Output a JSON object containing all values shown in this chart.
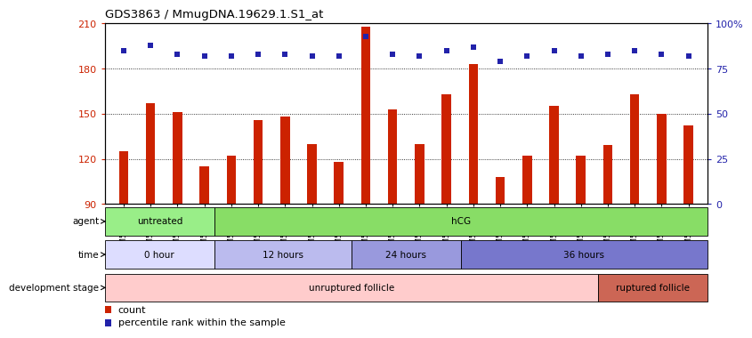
{
  "title": "GDS3863 / MmugDNA.19629.1.S1_at",
  "samples": [
    "GSM563219",
    "GSM563220",
    "GSM563221",
    "GSM563222",
    "GSM563223",
    "GSM563224",
    "GSM563225",
    "GSM563226",
    "GSM563227",
    "GSM563228",
    "GSM563229",
    "GSM563230",
    "GSM563231",
    "GSM563232",
    "GSM563233",
    "GSM563234",
    "GSM563235",
    "GSM563236",
    "GSM563237",
    "GSM563238",
    "GSM563239",
    "GSM563240"
  ],
  "counts": [
    125,
    157,
    151,
    115,
    122,
    146,
    148,
    130,
    118,
    208,
    153,
    130,
    163,
    183,
    108,
    122,
    155,
    122,
    129,
    163,
    150,
    142
  ],
  "percentiles": [
    85,
    88,
    83,
    82,
    82,
    83,
    83,
    82,
    82,
    93,
    83,
    82,
    85,
    87,
    79,
    82,
    85,
    82,
    83,
    85,
    83,
    82
  ],
  "ylim_left": [
    90,
    210
  ],
  "yticks_left": [
    90,
    120,
    150,
    180,
    210
  ],
  "ylim_right": [
    0,
    100
  ],
  "yticks_right": [
    0,
    25,
    50,
    75,
    100
  ],
  "bar_color": "#cc2200",
  "dot_color": "#2222aa",
  "background_color": "#ffffff",
  "plot_bg_color": "#ffffff",
  "agent_groups": [
    {
      "label": "untreated",
      "start": 0,
      "end": 4,
      "color": "#99ee88"
    },
    {
      "label": "hCG",
      "start": 4,
      "end": 22,
      "color": "#88dd66"
    }
  ],
  "time_groups": [
    {
      "label": "0 hour",
      "start": 0,
      "end": 4,
      "color": "#ddddff"
    },
    {
      "label": "12 hours",
      "start": 4,
      "end": 9,
      "color": "#bbbbee"
    },
    {
      "label": "24 hours",
      "start": 9,
      "end": 13,
      "color": "#9999dd"
    },
    {
      "label": "36 hours",
      "start": 13,
      "end": 22,
      "color": "#7777cc"
    }
  ],
  "dev_groups": [
    {
      "label": "unruptured follicle",
      "start": 0,
      "end": 18,
      "color": "#ffcccc"
    },
    {
      "label": "ruptured follicle",
      "start": 18,
      "end": 22,
      "color": "#cc6655"
    }
  ],
  "legend_count_color": "#cc2200",
  "legend_dot_color": "#2222aa"
}
